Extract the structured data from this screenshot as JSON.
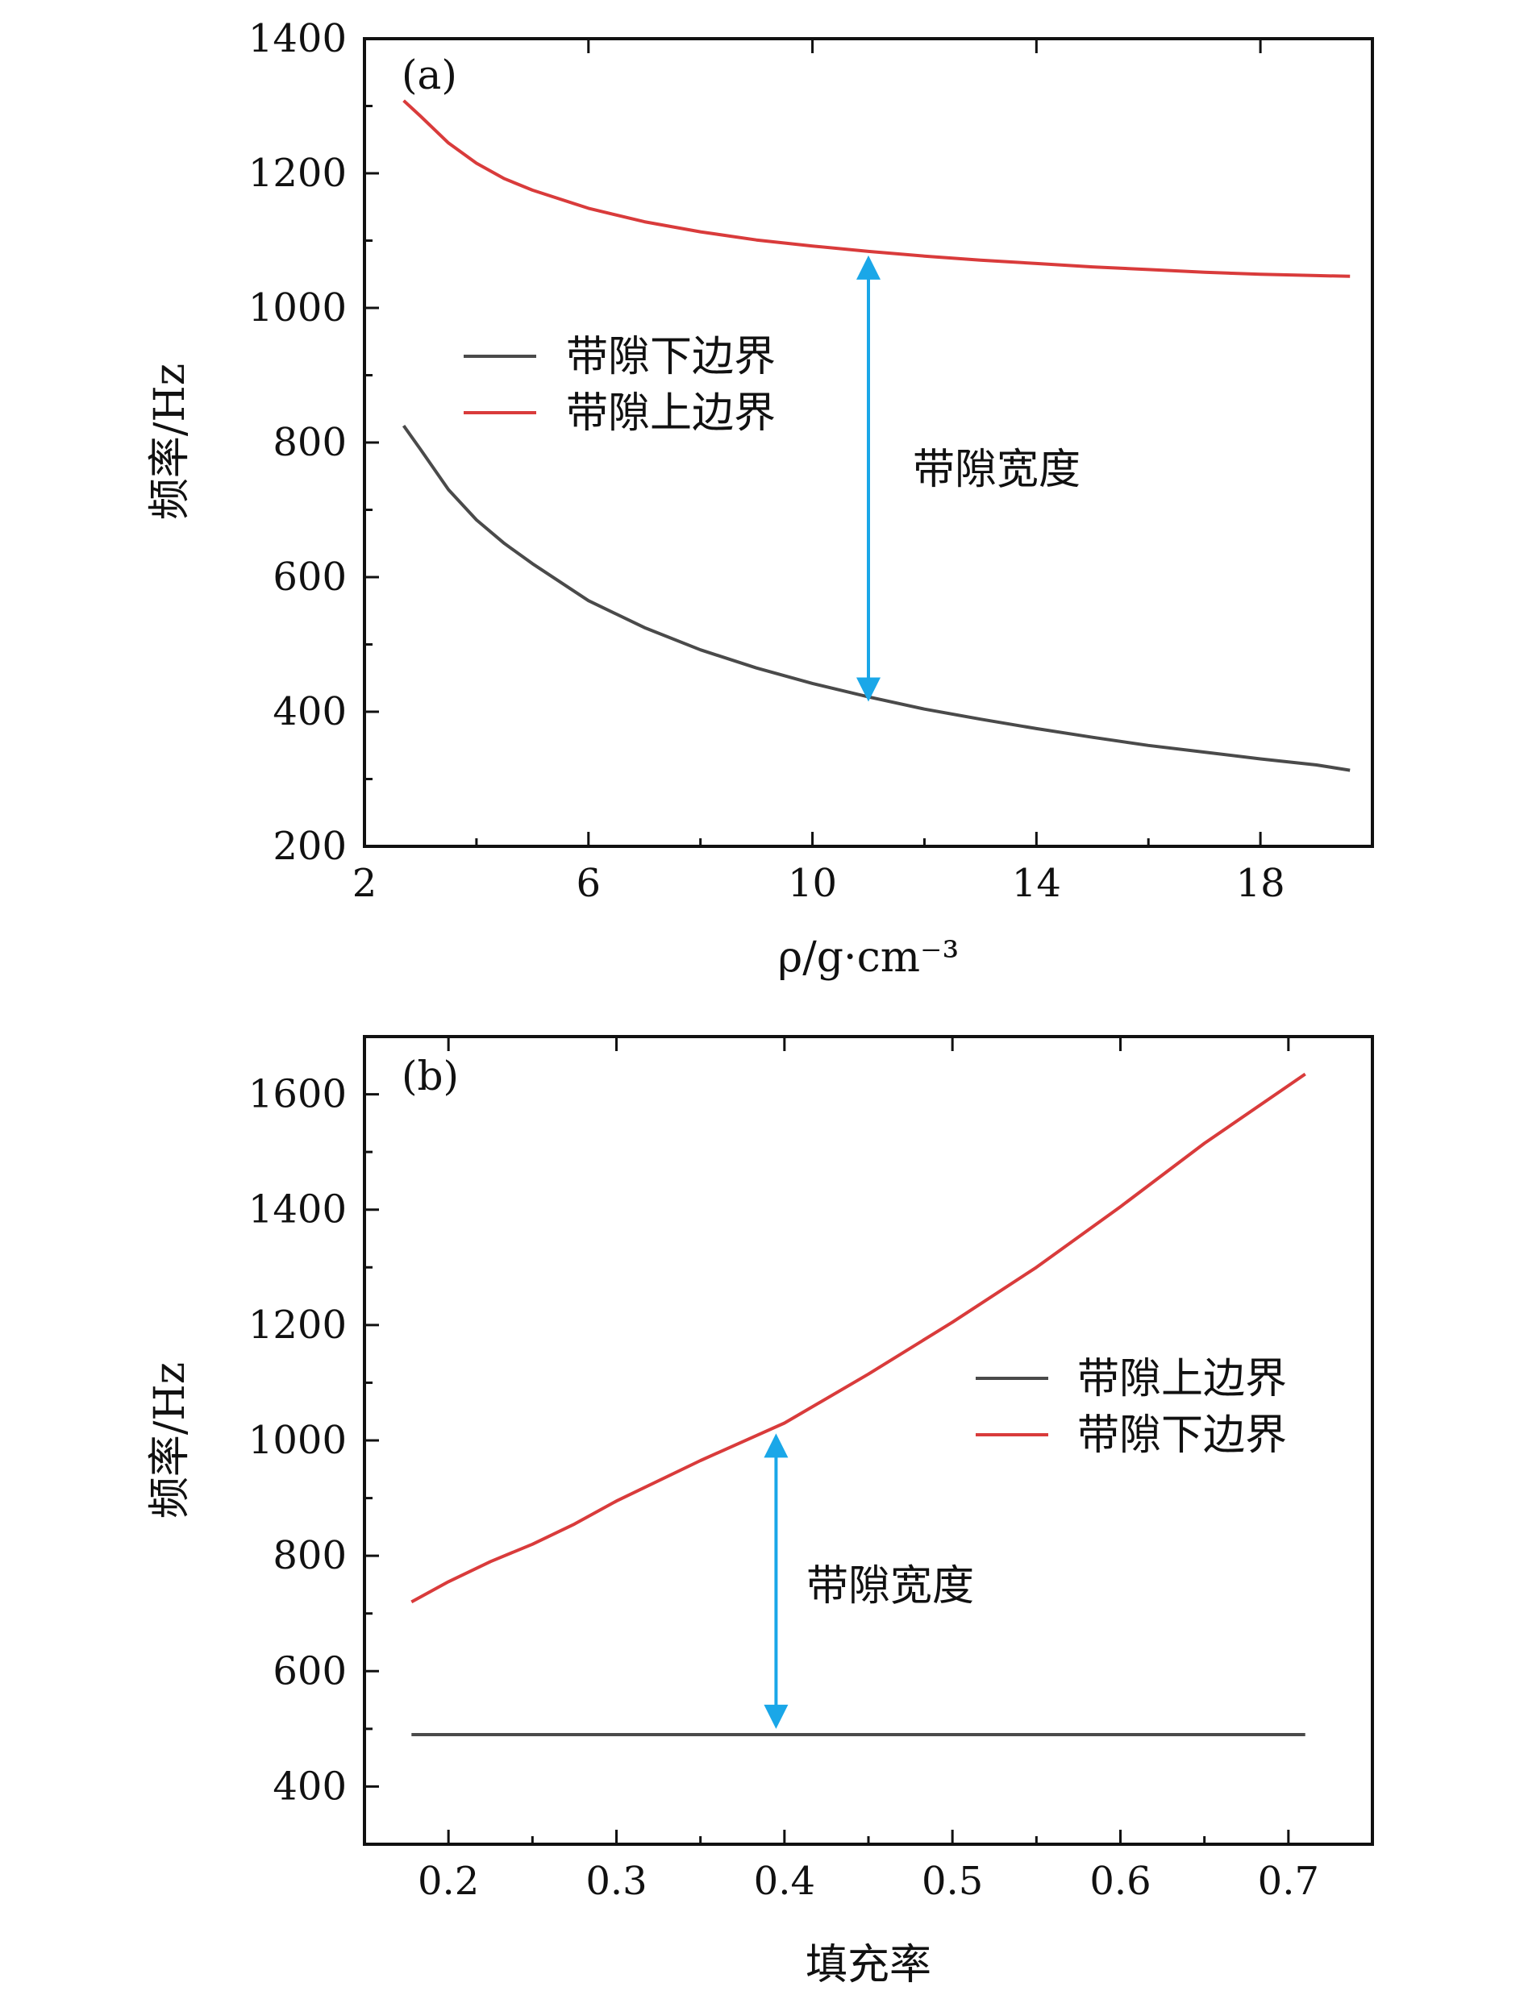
{
  "chart_data": [
    {
      "type": "line",
      "panel": "(a)",
      "xlabel": "ρ/g·cm⁻³",
      "ylabel": "频率/Hz",
      "xlim": [
        2,
        20
      ],
      "ylim": [
        200,
        1400
      ],
      "xticks": [
        2,
        6,
        10,
        14,
        18
      ],
      "xtick_labels": [
        "2",
        "6",
        "10",
        "14",
        "18"
      ],
      "yticks": [
        200,
        400,
        600,
        800,
        1000,
        1200,
        1400
      ],
      "ytick_labels": [
        "200",
        "400",
        "600",
        "800",
        "1000",
        "1200",
        "1400"
      ],
      "legend_position": "center-left",
      "series": [
        {
          "name": "带隙下边界",
          "color": "#4a4a4a",
          "x": [
            2.7,
            3.0,
            3.5,
            4.0,
            4.5,
            5.0,
            6.0,
            7.0,
            8.0,
            9.0,
            10.0,
            11.0,
            12.0,
            13.0,
            14.0,
            15.0,
            16.0,
            17.0,
            18.0,
            19.0,
            19.6
          ],
          "y": [
            825,
            790,
            730,
            685,
            650,
            620,
            565,
            525,
            492,
            465,
            442,
            422,
            404,
            389,
            375,
            362,
            350,
            340,
            330,
            321,
            313
          ]
        },
        {
          "name": "带隙上边界",
          "color": "#d93b3b",
          "x": [
            2.7,
            3.0,
            3.5,
            4.0,
            4.5,
            5.0,
            6.0,
            7.0,
            8.0,
            9.0,
            10.0,
            11.0,
            12.0,
            13.0,
            14.0,
            15.0,
            16.0,
            17.0,
            18.0,
            19.0,
            19.6
          ],
          "y": [
            1308,
            1285,
            1245,
            1215,
            1192,
            1175,
            1148,
            1128,
            1113,
            1101,
            1092,
            1084,
            1077,
            1071,
            1066,
            1061,
            1057,
            1053,
            1050,
            1048,
            1047
          ]
        }
      ],
      "annotation": {
        "text": "带隙宽度",
        "arrow_x": 11.0,
        "arrow_y_from": 415,
        "arrow_y_to": 1078,
        "color": "#1aa7e8"
      }
    },
    {
      "type": "line",
      "panel": "(b)",
      "xlabel": "填充率",
      "ylabel": "频率/Hz",
      "xlim": [
        0.15,
        0.75
      ],
      "ylim": [
        300,
        1700
      ],
      "xticks": [
        0.2,
        0.3,
        0.4,
        0.5,
        0.6,
        0.7
      ],
      "xtick_labels": [
        "0.2",
        "0.3",
        "0.4",
        "0.5",
        "0.6",
        "0.7"
      ],
      "yticks": [
        400,
        600,
        800,
        1000,
        1200,
        1400,
        1600
      ],
      "ytick_labels": [
        "400",
        "600",
        "800",
        "1000",
        "1200",
        "1400",
        "1600"
      ],
      "legend_position": "center-right",
      "series": [
        {
          "name": "带隙上边界",
          "color": "#4a4a4a",
          "x": [
            0.178,
            0.71
          ],
          "y": [
            490,
            490
          ]
        },
        {
          "name": "带隙下边界",
          "color": "#d93b3b",
          "x": [
            0.178,
            0.2,
            0.225,
            0.25,
            0.275,
            0.3,
            0.35,
            0.4,
            0.45,
            0.5,
            0.55,
            0.6,
            0.65,
            0.71
          ],
          "y": [
            720,
            755,
            790,
            820,
            855,
            895,
            965,
            1030,
            1115,
            1205,
            1300,
            1405,
            1515,
            1635
          ]
        }
      ],
      "annotation": {
        "text": "带隙宽度",
        "arrow_x": 0.395,
        "arrow_y_from": 500,
        "arrow_y_to": 1012,
        "color": "#1aa7e8"
      }
    }
  ]
}
